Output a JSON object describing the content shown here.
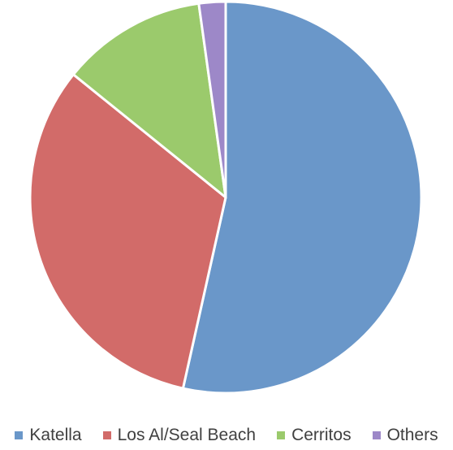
{
  "chart_data": {
    "type": "pie",
    "categories": [
      "Katella",
      "Los Al/Seal Beach",
      "Cerritos",
      "Others"
    ],
    "values": [
      53.5,
      32.3,
      12.0,
      2.2
    ],
    "colors": [
      "#6a97c9",
      "#d26b69",
      "#9bca6c",
      "#9d88c8"
    ],
    "title": "",
    "legend": "bottom"
  }
}
